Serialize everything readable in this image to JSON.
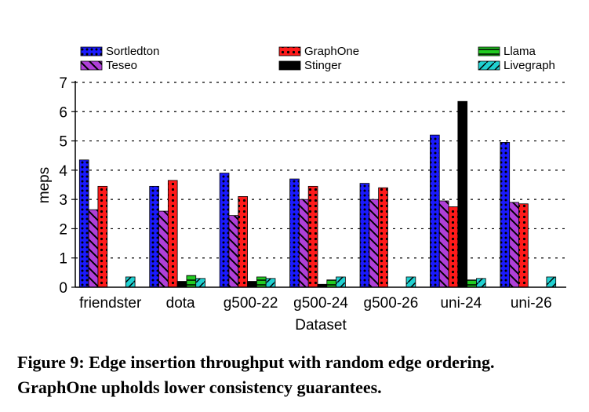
{
  "chart_data": {
    "type": "bar",
    "xlabel": "Dataset",
    "ylabel": "meps",
    "ylim": [
      0,
      7
    ],
    "yticks": [
      0,
      1,
      2,
      3,
      4,
      5,
      6,
      7
    ],
    "grid": "horizontal dotted",
    "legend_position": "top",
    "categories": [
      "friendster",
      "dota",
      "g500-22",
      "g500-24",
      "g500-26",
      "uni-24",
      "uni-26"
    ],
    "series": [
      {
        "name": "Sortledton",
        "color": "#1a1aff",
        "pattern": "dots",
        "values": [
          4.35,
          3.45,
          3.9,
          3.7,
          3.55,
          5.2,
          4.95
        ]
      },
      {
        "name": "Teseo",
        "color": "#b040d8",
        "pattern": "hatch",
        "values": [
          2.65,
          2.6,
          2.45,
          3.0,
          3.0,
          2.95,
          2.9
        ]
      },
      {
        "name": "GraphOne",
        "color": "#ff1a1a",
        "pattern": "circles",
        "values": [
          3.45,
          3.65,
          3.1,
          3.45,
          3.4,
          2.75,
          2.85
        ]
      },
      {
        "name": "Stinger",
        "color": "#000000",
        "pattern": "solid",
        "values": [
          null,
          0.2,
          0.2,
          0.1,
          null,
          6.35,
          null
        ]
      },
      {
        "name": "Llama",
        "color": "#22cc22",
        "pattern": "hline",
        "values": [
          null,
          0.4,
          0.35,
          0.25,
          null,
          0.25,
          null
        ]
      },
      {
        "name": "Livegraph",
        "color": "#20d0d0",
        "pattern": "hatch-sparse",
        "values": [
          0.35,
          0.3,
          0.3,
          0.35,
          0.35,
          0.3,
          0.35
        ]
      }
    ]
  },
  "caption": "Figure 9: Edge insertion throughput with random edge ordering. GraphOne upholds lower consistency guarantees."
}
